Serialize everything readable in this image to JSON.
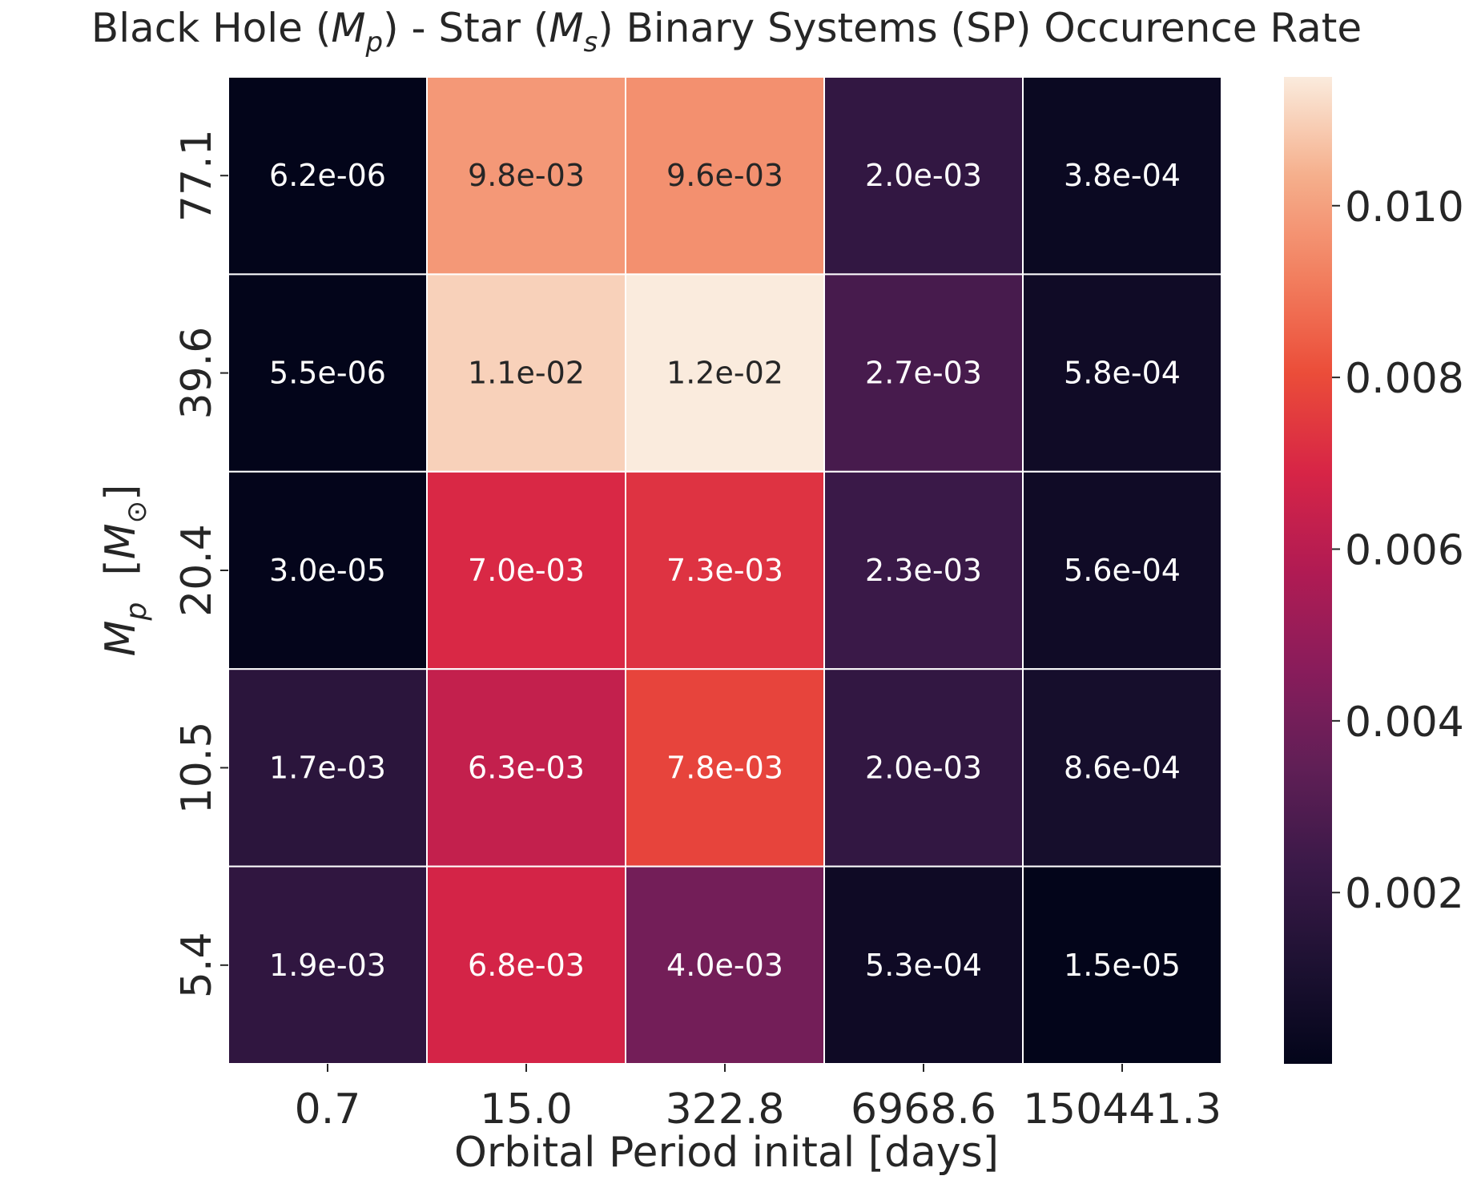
{
  "chart_data": {
    "type": "heatmap",
    "title": {
      "prefix": "Black Hole (",
      "mp_symbol": "M",
      "mp_sub": "p",
      "middle": ")  - Star (",
      "ms_symbol": "M",
      "ms_sub": "s",
      "suffix": ") Binary Systems (SP) Occurence Rate"
    },
    "xlabel": "Orbital Period inital [days]",
    "ylabel": {
      "symbol": "M",
      "sub": "p",
      "unit_open": "  [",
      "unit_symbol": "M",
      "unit_sub": "⊙",
      "unit_close": "]"
    },
    "x_categories": [
      "0.7",
      "15.0",
      "322.8",
      "6968.6",
      "150441.3"
    ],
    "y_categories": [
      "77.1",
      "39.6",
      "20.4",
      "10.5",
      "5.4"
    ],
    "values": [
      [
        6.2e-06,
        0.0098,
        0.0096,
        0.002,
        0.00038
      ],
      [
        5.5e-06,
        0.011,
        0.012,
        0.0027,
        0.00058
      ],
      [
        3e-05,
        0.007,
        0.0073,
        0.0023,
        0.00056
      ],
      [
        0.0017,
        0.0063,
        0.0078,
        0.002,
        0.00086
      ],
      [
        0.0019,
        0.0068,
        0.004,
        0.00053,
        1.5e-05
      ]
    ],
    "annotations": [
      [
        "6.2e-06",
        "9.8e-03",
        "9.6e-03",
        "2.0e-03",
        "3.8e-04"
      ],
      [
        "5.5e-06",
        "1.1e-02",
        "1.2e-02",
        "2.7e-03",
        "5.8e-04"
      ],
      [
        "3.0e-05",
        "7.0e-03",
        "7.3e-03",
        "2.3e-03",
        "5.6e-04"
      ],
      [
        "1.7e-03",
        "6.3e-03",
        "7.8e-03",
        "2.0e-03",
        "8.6e-04"
      ],
      [
        "1.9e-03",
        "6.8e-03",
        "4.0e-03",
        "5.3e-04",
        "1.5e-05"
      ]
    ],
    "colorbar": {
      "colormap": "rocket",
      "vmin": 5.5e-06,
      "vmax": 0.0115,
      "ticks": [
        0.002,
        0.004,
        0.006,
        0.008,
        0.01
      ],
      "tick_labels": [
        "0.002",
        "0.004",
        "0.006",
        "0.008",
        "0.010"
      ]
    },
    "grid": false,
    "cell_borders": "white"
  }
}
